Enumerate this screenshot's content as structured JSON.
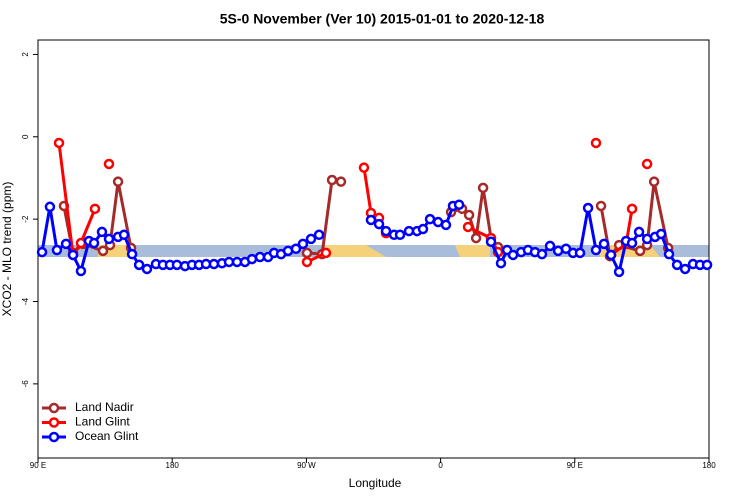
{
  "chart_data": {
    "type": "line",
    "title": "5S-0 November (Ver 10)   2015-01-01 to 2020-12-18",
    "x_label": "Longitude",
    "y_label": "XCO2 - MLO trend (ppm)",
    "xlim": [
      90,
      540
    ],
    "ylim": [
      -7.8,
      2.35
    ],
    "xticks": [
      {
        "value": 90,
        "label": "90 E"
      },
      180,
      {
        "value": 270,
        "label": "90 W"
      },
      {
        "value": 360,
        "label": "0"
      },
      {
        "value": 450,
        "label": "90 E"
      },
      {
        "value": 540,
        "label": "180"
      }
    ],
    "yticks": [
      2,
      0,
      -2,
      -4,
      -6
    ],
    "legend": "bottom-left",
    "series": [
      {
        "name": "Land Nadir",
        "color": "#a52a2a",
        "x": [
          107.4,
          113.5,
          120.2,
          133.6,
          138.3,
          143.7,
          152.4,
          null,
          270.4,
          280.5,
          287.2,
          293.2,
          null,
          367.0,
          374.4,
          379.1,
          383.8,
          388.5,
          393.8,
          398.5,
          null,
          467.6,
          473.6,
          479.7,
          493.8,
          498.5,
          503.2,
          512.6
        ],
        "values": [
          -1.68,
          -2.82,
          -2.6,
          -2.77,
          -2.63,
          -1.09,
          -2.7,
          null,
          -2.82,
          -2.85,
          -1.05,
          -1.09,
          null,
          -1.83,
          -1.75,
          -1.9,
          -2.46,
          -1.24,
          -2.46,
          -2.68,
          null,
          -1.68,
          -2.9,
          -2.63,
          -2.77,
          -2.63,
          -1.09,
          -2.7
        ]
      },
      {
        "name": "Land Glint",
        "color": "#ff0000",
        "x": [
          104.1,
          113.5,
          118.8,
          128.2,
          null,
          137.6,
          null,
          270.4,
          283.1,
          null,
          308.6,
          313.3,
          318.7,
          323.4,
          null,
          378.4,
          393.8,
          398.5,
          null,
          464.2,
          null,
          474.3,
          484.4,
          488.4,
          null,
          498.5
        ],
        "values": [
          -0.15,
          -2.87,
          -2.58,
          -1.75,
          null,
          -0.66,
          null,
          -3.04,
          -2.82,
          null,
          -0.75,
          -1.85,
          -1.97,
          -2.34,
          null,
          -2.19,
          -2.46,
          -2.8,
          null,
          -0.15,
          null,
          -2.87,
          -2.6,
          -1.75,
          null,
          -0.66
        ]
      },
      {
        "name": "Ocean Glint",
        "color": "#0000ff",
        "x": [
          92.7,
          98.0,
          102.7,
          108.8,
          113.5,
          118.8,
          124.2,
          127.6,
          132.9,
          137.6,
          143.7,
          147.7,
          153.1,
          157.8,
          163.1,
          169.1,
          173.8,
          178.5,
          183.2,
          188.6,
          193.3,
          198.0,
          202.7,
          208.0,
          213.4,
          218.1,
          223.5,
          228.8,
          233.5,
          238.9,
          244.3,
          248.3,
          253.0,
          257.7,
          263.0,
          267.7,
          273.1,
          278.5,
          null,
          313.3,
          318.7,
          323.4,
          328.8,
          332.8,
          338.8,
          344.2,
          348.2,
          352.9,
          358.3,
          363.6,
          368.3,
          372.4,
          null,
          393.8,
          400.5,
          404.6,
          408.6,
          414.0,
          418.6,
          423.3,
          428.0,
          433.4,
          438.8,
          444.1,
          448.8,
          453.5,
          458.9,
          464.2,
          469.6,
          474.3,
          479.7,
          484.4,
          488.4,
          493.1,
          498.5,
          503.8,
          507.9,
          513.2,
          518.6,
          524.0,
          529.3,
          534.0,
          538.7
        ],
        "values": [
          -2.8,
          -1.7,
          -2.75,
          -2.6,
          -2.87,
          -3.26,
          -2.53,
          -2.58,
          -2.31,
          -2.48,
          -2.43,
          -2.38,
          -2.85,
          -3.11,
          -3.21,
          -3.09,
          -3.11,
          -3.11,
          -3.11,
          -3.14,
          -3.11,
          -3.11,
          -3.09,
          -3.09,
          -3.07,
          -3.04,
          -3.04,
          -3.04,
          -2.97,
          -2.92,
          -2.92,
          -2.82,
          -2.85,
          -2.77,
          -2.72,
          -2.6,
          -2.48,
          -2.38,
          null,
          -2.02,
          -2.12,
          -2.29,
          -2.38,
          -2.38,
          -2.29,
          -2.29,
          -2.24,
          -2.0,
          -2.07,
          -2.14,
          -1.68,
          -1.65,
          null,
          -2.55,
          -3.07,
          -2.75,
          -2.87,
          -2.8,
          -2.75,
          -2.8,
          -2.85,
          -2.65,
          -2.77,
          -2.72,
          -2.82,
          -2.82,
          -1.73,
          -2.75,
          -2.6,
          -2.87,
          -3.28,
          -2.53,
          -2.58,
          -2.31,
          -2.48,
          -2.43,
          -2.36,
          -2.85,
          -3.11,
          -3.21,
          -3.09,
          -3.11,
          -3.11
        ]
      }
    ]
  }
}
